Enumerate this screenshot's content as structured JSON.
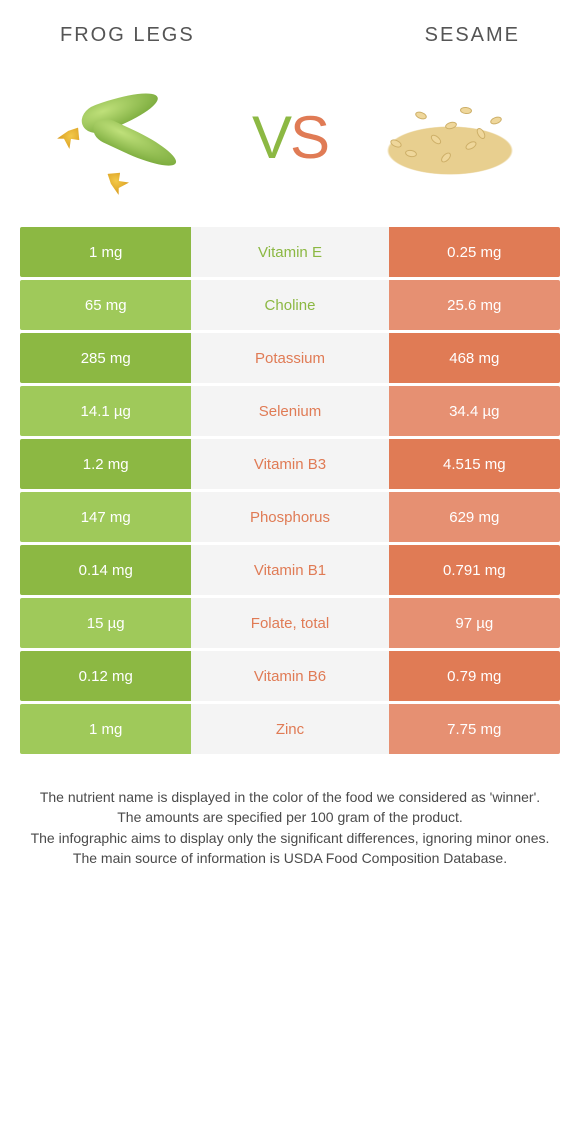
{
  "colors": {
    "left_base": "#8cb843",
    "left_alt": "#9fc95a",
    "right_base": "#e07b55",
    "right_alt": "#e69072",
    "mid_bg": "#f4f4f4",
    "text_dark": "#555555"
  },
  "header": {
    "left_title": "Frog legs",
    "right_title": "Sesame"
  },
  "vs": {
    "v": "V",
    "s": "S"
  },
  "rows": [
    {
      "left": "1 mg",
      "label": "Vitamin E",
      "right": "0.25 mg",
      "winner": "left"
    },
    {
      "left": "65 mg",
      "label": "Choline",
      "right": "25.6 mg",
      "winner": "left"
    },
    {
      "left": "285 mg",
      "label": "Potassium",
      "right": "468 mg",
      "winner": "right"
    },
    {
      "left": "14.1 µg",
      "label": "Selenium",
      "right": "34.4 µg",
      "winner": "right"
    },
    {
      "left": "1.2 mg",
      "label": "Vitamin B3",
      "right": "4.515 mg",
      "winner": "right"
    },
    {
      "left": "147 mg",
      "label": "Phosphorus",
      "right": "629 mg",
      "winner": "right"
    },
    {
      "left": "0.14 mg",
      "label": "Vitamin B1",
      "right": "0.791 mg",
      "winner": "right"
    },
    {
      "left": "15 µg",
      "label": "Folate, total",
      "right": "97 µg",
      "winner": "right"
    },
    {
      "left": "0.12 mg",
      "label": "Vitamin B6",
      "right": "0.79 mg",
      "winner": "right"
    },
    {
      "left": "1 mg",
      "label": "Zinc",
      "right": "7.75 mg",
      "winner": "right"
    }
  ],
  "footer": {
    "l1": "The nutrient name is displayed in the color of the food we considered as 'winner'.",
    "l2": "The amounts are specified per 100 gram of the product.",
    "l3": "The infographic aims to display only the significant differences, ignoring minor ones.",
    "l4": "The main source of information is USDA Food Composition Database."
  }
}
